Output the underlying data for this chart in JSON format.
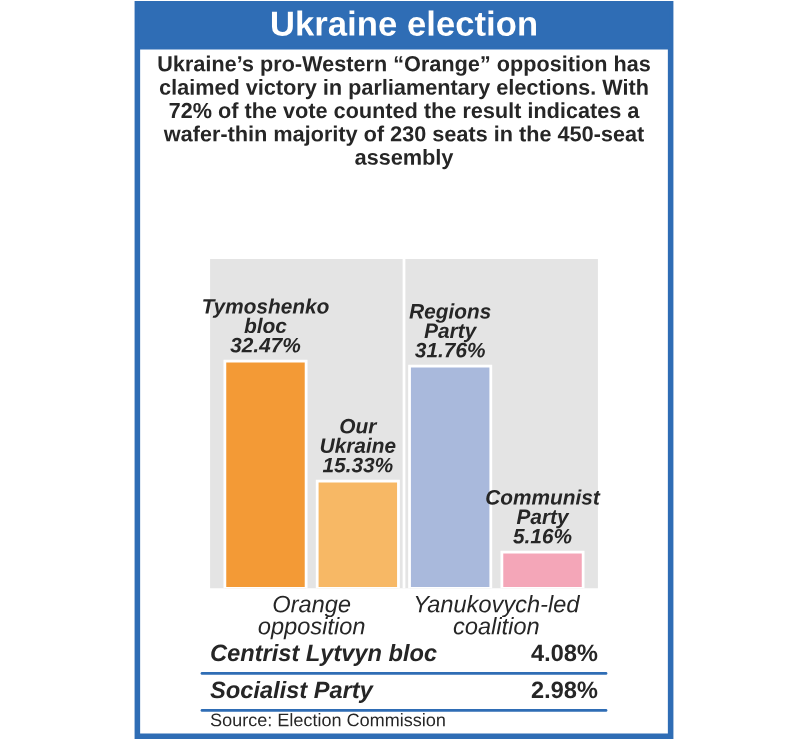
{
  "chart_data": {
    "type": "bar",
    "title": "Ukraine election",
    "subtitle": "Ukraine’s pro-Western “Orange” opposition has claimed victory in parliamentary elections. With 72% of the vote counted the result indicates a wafer-thin majority of 230 seats in the 450-seat assembly",
    "categories": [
      "Tymoshenko bloc",
      "Our Ukraine",
      "Regions Party",
      "Communist Party"
    ],
    "values": [
      32.47,
      15.33,
      31.76,
      5.16
    ],
    "colors": [
      "#f39a36",
      "#f7b865",
      "#a9b9dc",
      "#f4a6b8"
    ],
    "value_labels": [
      "32.47%",
      "15.33%",
      "31.76%",
      "5.16%"
    ],
    "relative": false,
    "annotations": [
      "Orange opposition",
      "Yanukovych-led coalition",
      "Centrist Lytvyn bloc 4.08%",
      "Socialist Party 2.98%",
      "Source: Election Commission"
    ]
  }
}
